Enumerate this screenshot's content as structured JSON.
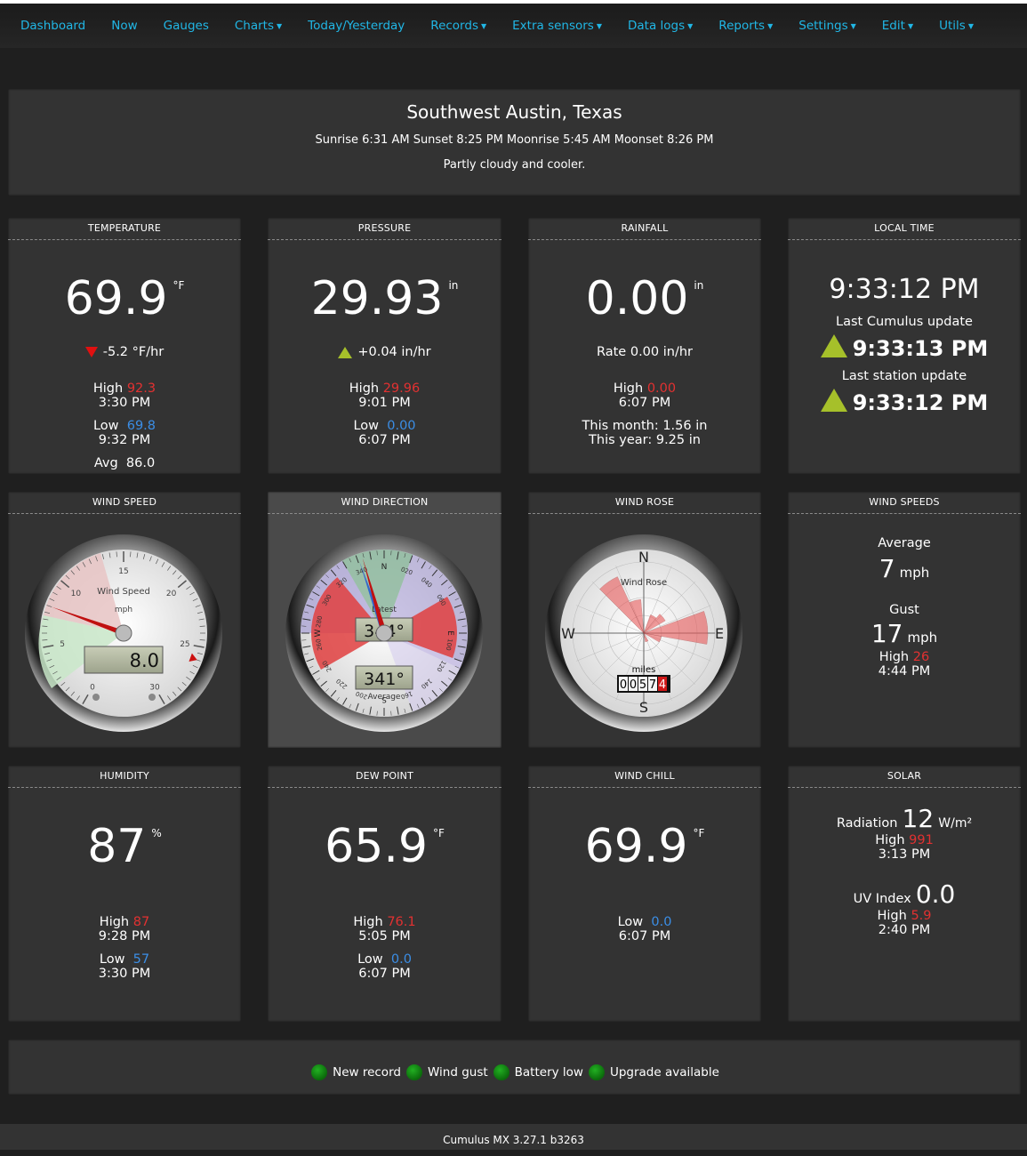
{
  "nav": [
    {
      "label": "Dashboard",
      "dropdown": false
    },
    {
      "label": "Now",
      "dropdown": false
    },
    {
      "label": "Gauges",
      "dropdown": false
    },
    {
      "label": "Charts",
      "dropdown": true
    },
    {
      "label": "Today/Yesterday",
      "dropdown": false
    },
    {
      "label": "Records",
      "dropdown": true
    },
    {
      "label": "Extra sensors",
      "dropdown": true
    },
    {
      "label": "Data logs",
      "dropdown": true
    },
    {
      "label": "Reports",
      "dropdown": true
    },
    {
      "label": "Settings",
      "dropdown": true
    },
    {
      "label": "Edit",
      "dropdown": true
    },
    {
      "label": "Utils",
      "dropdown": true
    }
  ],
  "header": {
    "station": "Southwest Austin, Texas",
    "sun_moon": "Sunrise 6:31 AM Sunset 8:25 PM Moonrise 5:45 AM Moonset 8:26 PM",
    "forecast": "Partly cloudy and cooler."
  },
  "temperature": {
    "title": "TEMPERATURE",
    "value": "69.9",
    "unit": "°F",
    "trend": "-5.2 °F/hr",
    "high_label": "High",
    "high": "92.3",
    "high_time": "3:30 PM",
    "low_label": "Low",
    "low": "69.8",
    "low_time": "9:32 PM",
    "avg_label": "Avg",
    "avg": "86.0"
  },
  "pressure": {
    "title": "PRESSURE",
    "value": "29.93",
    "unit": "in",
    "trend": "+0.04 in/hr",
    "high_label": "High",
    "high": "29.96",
    "high_time": "9:01 PM",
    "low_label": "Low",
    "low": "0.00",
    "low_time": "6:07 PM"
  },
  "rainfall": {
    "title": "RAINFALL",
    "value": "0.00",
    "unit": "in",
    "rate": "Rate 0.00 in/hr",
    "high_label": "High",
    "high": "0.00",
    "high_time": "6:07 PM",
    "month": "This month: 1.56 in",
    "year": "This year: 9.25 in"
  },
  "local_time": {
    "title": "LOCAL TIME",
    "time": "9:33:12 PM",
    "cumulus_label": "Last Cumulus update",
    "cumulus_time": "9:33:13 PM",
    "station_label": "Last station update",
    "station_time": "9:33:12 PM"
  },
  "wind_speed": {
    "title": "WIND SPEED",
    "gauge_label": "Wind Speed",
    "unit": "mph",
    "reading": "8.0",
    "scale": [
      "0",
      "5",
      "10",
      "15",
      "20",
      "25",
      "30"
    ],
    "value": 8.0,
    "max_mark": 26
  },
  "wind_direction": {
    "title": "WIND DIRECTION",
    "latest_label": "Latest",
    "latest": "344°",
    "average_label": "Average",
    "average": "341°",
    "cardinals": [
      "N",
      "E",
      "S",
      "W"
    ],
    "degrees": [
      "020",
      "040",
      "060",
      "100",
      "120",
      "140",
      "160",
      "200",
      "220",
      "240",
      "260",
      "280",
      "300",
      "320",
      "340"
    ],
    "latest_deg": 344,
    "average_deg": 341
  },
  "wind_rose": {
    "title": "WIND ROSE",
    "gauge_label": "Wind Rose",
    "odo_label": "miles",
    "odometer": [
      "0",
      "0",
      "5",
      "7",
      "4"
    ],
    "cardinals": [
      "N",
      "E",
      "S",
      "W"
    ]
  },
  "wind_speeds": {
    "title": "WIND SPEEDS",
    "avg_label": "Average",
    "avg": "7",
    "avg_unit": "mph",
    "gust_label": "Gust",
    "gust": "17",
    "gust_unit": "mph",
    "high_label": "High",
    "high": "26",
    "high_time": "4:44 PM"
  },
  "humidity": {
    "title": "HUMIDITY",
    "value": "87",
    "unit": "%",
    "high_label": "High",
    "high": "87",
    "high_time": "9:28 PM",
    "low_label": "Low",
    "low": "57",
    "low_time": "3:30 PM"
  },
  "dew_point": {
    "title": "DEW POINT",
    "value": "65.9",
    "unit": "°F",
    "high_label": "High",
    "high": "76.1",
    "high_time": "5:05 PM",
    "low_label": "Low",
    "low": "0.0",
    "low_time": "6:07 PM"
  },
  "wind_chill": {
    "title": "WIND CHILL",
    "value": "69.9",
    "unit": "°F",
    "low_label": "Low",
    "low": "0.0",
    "low_time": "6:07 PM"
  },
  "solar": {
    "title": "SOLAR",
    "rad_label": "Radiation",
    "rad": "12",
    "rad_unit": "W/m²",
    "rad_high_label": "High",
    "rad_high": "991",
    "rad_high_time": "3:13 PM",
    "uv_label": "UV Index",
    "uv": "0.0",
    "uv_high_label": "High",
    "uv_high": "5.9",
    "uv_high_time": "2:40 PM"
  },
  "status": [
    {
      "label": "New record"
    },
    {
      "label": "Wind gust"
    },
    {
      "label": "Battery low"
    },
    {
      "label": "Upgrade available"
    }
  ],
  "footer": "Cumulus MX 3.27.1 b3263"
}
